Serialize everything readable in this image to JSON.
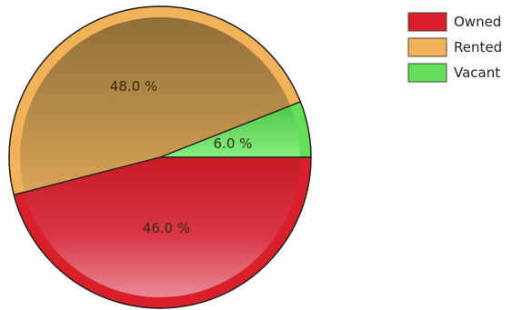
{
  "chart_data": {
    "type": "pie",
    "categories": [
      "Owned",
      "Rented",
      "Vacant"
    ],
    "values": [
      46.0,
      48.0,
      6.0
    ],
    "labels": [
      "46.0 %",
      "48.0 %",
      "6.0 %"
    ],
    "colors": [
      "#d81f2a",
      "#f2b25a",
      "#63df5a"
    ],
    "legend_position": "top-right",
    "title": "",
    "style": "3d-shaded"
  }
}
